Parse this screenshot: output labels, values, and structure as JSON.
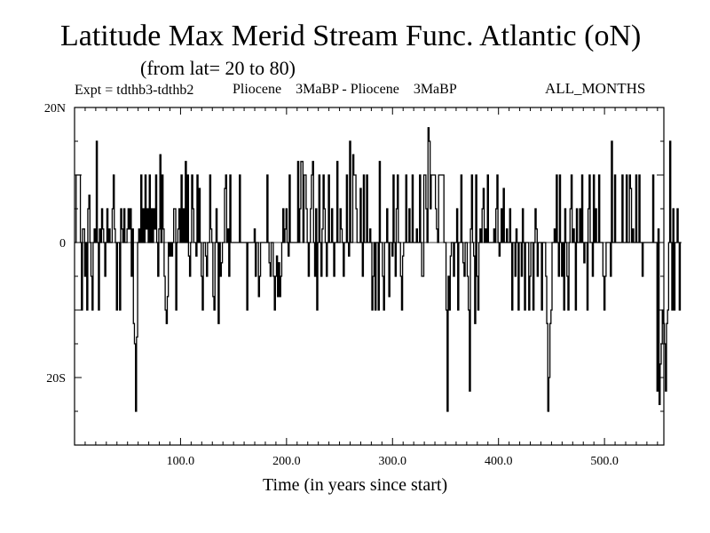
{
  "chart_data": {
    "type": "line",
    "title": "Latitude Max Merid Stream Func. Atlantic (oN)",
    "subtitle": "(from lat= 20 to 80)",
    "expt_label": "Expt = tdthb3-tdthb2",
    "expt_name": "Pliocene    3MaBP - Pliocene    3MaBP",
    "months": "ALL_MONTHS",
    "xlabel": "Time (in years since start)",
    "ylabel": "",
    "xlim": [
      0,
      556
    ],
    "ylim": [
      -30,
      20
    ],
    "xticks": [
      {
        "value": 100,
        "label": "100.0"
      },
      {
        "value": 200,
        "label": "200.0"
      },
      {
        "value": 300,
        "label": "300.0"
      },
      {
        "value": 400,
        "label": "400.0"
      },
      {
        "value": 500,
        "label": "500.0"
      }
    ],
    "yticks": [
      {
        "value": 20,
        "label": "20N"
      },
      {
        "value": 0,
        "label": "0"
      },
      {
        "value": -20,
        "label": "20S"
      }
    ],
    "series": [
      {
        "name": "Latitude of max meridional stream function",
        "x_start": 1,
        "x_step": 1,
        "values": [
          0,
          10,
          10,
          10,
          10,
          0,
          -10,
          2,
          2,
          -5,
          0,
          -10,
          5,
          7,
          0,
          -5,
          -10,
          0,
          2,
          0,
          15,
          0,
          -10,
          2,
          0,
          5,
          2,
          0,
          -5,
          0,
          5,
          0,
          2,
          0,
          0,
          5,
          10,
          2,
          0,
          -10,
          0,
          0,
          -10,
          5,
          2,
          0,
          5,
          0,
          0,
          2,
          5,
          2,
          5,
          -5,
          2,
          -12,
          -15,
          -25,
          -14,
          0,
          2,
          0,
          10,
          0,
          5,
          0,
          10,
          2,
          5,
          0,
          10,
          0,
          5,
          0,
          5,
          2,
          10,
          0,
          -5,
          2,
          13,
          0,
          10,
          2,
          -5,
          -10,
          -12,
          -8,
          0,
          -2,
          0,
          -2,
          0,
          5,
          5,
          -10,
          0,
          2,
          5,
          0,
          10,
          0,
          5,
          0,
          12,
          0,
          10,
          -2,
          -5,
          0,
          10,
          5,
          0,
          0,
          -2,
          10,
          0,
          8,
          0,
          -5,
          -10,
          0,
          0,
          -2,
          -5,
          0,
          0,
          10,
          2,
          0,
          -8,
          -10,
          0,
          5,
          0,
          -12,
          0,
          -5,
          -3,
          0,
          0,
          8,
          10,
          0,
          2,
          -5,
          10,
          0,
          0,
          0,
          0,
          0,
          0,
          0,
          0,
          10,
          0,
          0,
          0,
          0,
          0,
          0,
          -10,
          0,
          0,
          0,
          0,
          0,
          0,
          2,
          -5,
          0,
          0,
          -8,
          -5,
          0,
          0,
          0,
          0,
          0,
          0,
          10,
          0,
          -3,
          -5,
          0,
          0,
          -5,
          -10,
          -5,
          -2,
          -8,
          -3,
          -8,
          -5,
          0,
          5,
          0,
          2,
          5,
          0,
          -2,
          10,
          0,
          0,
          0,
          0,
          0,
          0,
          0,
          12,
          0,
          5,
          12,
          12,
          0,
          10,
          10,
          5,
          0,
          -5,
          0,
          5,
          10,
          12,
          0,
          -5,
          5,
          -10,
          0,
          10,
          0,
          -5,
          2,
          10,
          5,
          0,
          -5,
          0,
          10,
          0,
          0,
          5,
          0,
          -5,
          0,
          0,
          12,
          0,
          0,
          5,
          2,
          0,
          -5,
          0,
          0,
          10,
          0,
          -2,
          15,
          0,
          0,
          13,
          10,
          10,
          5,
          0,
          0,
          0,
          8,
          0,
          -5,
          10,
          0,
          0,
          10,
          0,
          0,
          2,
          0,
          -10,
          -5,
          0,
          -10,
          0,
          0,
          -10,
          12,
          0,
          0,
          -5,
          -10,
          0,
          0,
          5,
          0,
          -8,
          0,
          0,
          -2,
          10,
          0,
          -5,
          5,
          10,
          0,
          0,
          -5,
          -10,
          -2,
          0,
          0,
          10,
          0,
          0,
          5,
          0,
          0,
          10,
          0,
          0,
          0,
          2,
          0,
          0,
          10,
          0,
          -5,
          -5,
          10,
          10,
          5,
          0,
          17,
          15,
          5,
          10,
          10,
          10,
          10,
          5,
          2,
          0,
          10,
          10,
          10,
          10,
          10,
          0,
          0,
          -10,
          -25,
          -5,
          -10,
          -2,
          0,
          0,
          -5,
          0,
          0,
          5,
          -10,
          0,
          0,
          10,
          0,
          -3,
          -5,
          0,
          0,
          -5,
          -10,
          -22,
          2,
          10,
          0,
          -2,
          -12,
          10,
          -5,
          -10,
          0,
          2,
          0,
          5,
          8,
          0,
          2,
          0,
          10,
          0,
          0,
          0,
          0,
          0,
          2,
          0,
          5,
          10,
          0,
          -2,
          0,
          5,
          0,
          8,
          0,
          0,
          2,
          0,
          0,
          5,
          0,
          -10,
          0,
          0,
          -5,
          2,
          0,
          -10,
          0,
          0,
          -5,
          5,
          0,
          -10,
          0,
          0,
          0,
          -10,
          -5,
          0,
          0,
          -10,
          0,
          5,
          2,
          -5,
          0,
          0,
          0,
          -10,
          0,
          0,
          0,
          -5,
          -12,
          -25,
          -20,
          -12,
          -10,
          0,
          0,
          2,
          0,
          10,
          0,
          -5,
          10,
          0,
          -5,
          0,
          -10,
          5,
          0,
          -5,
          -10,
          0,
          5,
          10,
          0,
          2,
          0,
          -10,
          5,
          0,
          0,
          5,
          0,
          10,
          0,
          -3,
          0,
          0,
          -10,
          5,
          10,
          0,
          0,
          -5,
          10,
          0,
          5,
          0,
          0,
          10,
          0,
          0,
          0,
          -5,
          -10,
          -5,
          0,
          0,
          0,
          0,
          -5,
          15,
          0,
          0,
          10,
          0,
          0,
          0,
          0,
          0,
          0,
          10,
          0,
          0,
          0,
          10,
          0,
          0,
          10,
          8,
          0,
          2,
          0,
          0,
          10,
          0,
          0,
          10,
          0,
          0,
          -5,
          0,
          0,
          0,
          0,
          0,
          0,
          0,
          0,
          0,
          10,
          0,
          0,
          0,
          -22,
          2,
          -24,
          -18,
          -15,
          -10,
          -12,
          -15,
          -22,
          -12,
          -10,
          0,
          15,
          0,
          -10,
          5,
          -10,
          0,
          0,
          5,
          0,
          -10,
          0
        ]
      }
    ]
  }
}
